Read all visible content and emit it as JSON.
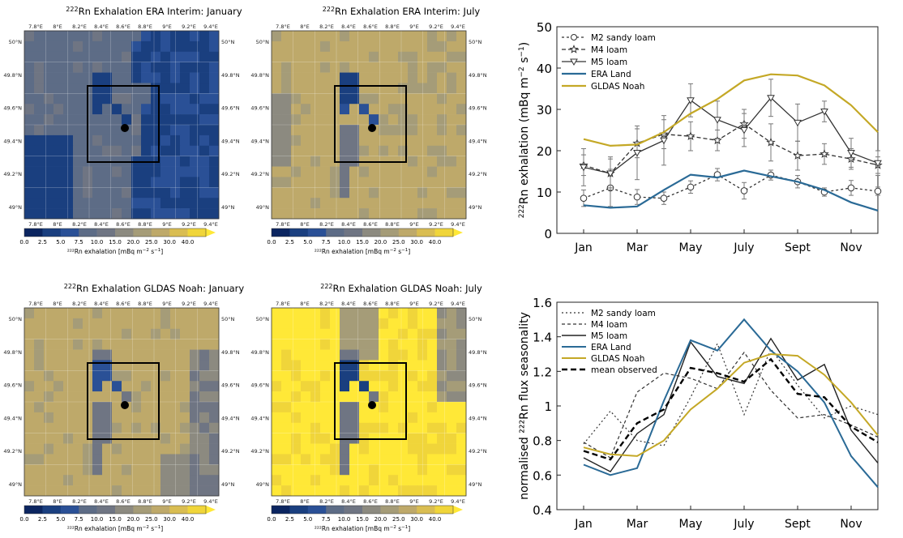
{
  "maps": {
    "ticks": {
      "x": [
        "7.8°E",
        "8°E",
        "8.2°E",
        "8.4°E",
        "8.6°E",
        "8.8°E",
        "9°E",
        "9.2°E",
        "9.4°E"
      ],
      "y": [
        "50°N",
        "49.8°N",
        "49.6°N",
        "49.4°N",
        "49.2°N",
        "49°N"
      ]
    },
    "colorbar": {
      "ticks": [
        "0.0",
        "2.5",
        "5.0",
        "7.5",
        "10.0",
        "15.0",
        "20.0",
        "25.0",
        "30.0",
        "40.0"
      ],
      "colors": [
        "#0b2560",
        "#1a3f7f",
        "#2a5096",
        "#5d6c86",
        "#6f7583",
        "#8c8a80",
        "#a59c78",
        "#bea96a",
        "#d9bd52",
        "#f0d53a",
        "#ffe837"
      ],
      "label_pre": "²²²Rn exhalation  [mBq m",
      "label_exp": "−2",
      "label_mid": " s",
      "label_exp2": "−1",
      "label_post": "]"
    },
    "panels": [
      {
        "title_iso": "222",
        "title": "Rn Exhalation ERA Interim: January",
        "scheme": "era_jan"
      },
      {
        "title_iso": "222",
        "title": "Rn Exhalation ERA Interim: July",
        "scheme": "era_jul"
      },
      {
        "title_iso": "222",
        "title": "Rn Exhalation GLDAS Noah: January",
        "scheme": "gldas_jan"
      },
      {
        "title_iso": "222",
        "title": "Rn Exhalation GLDAS Noah: July",
        "scheme": "gldas_jul"
      }
    ]
  },
  "chart_data": [
    {
      "type": "line",
      "ylabel_iso": "222",
      "ylabel_pre": "Rn exhalation (mBq m",
      "ylabel_exp1": "−2",
      "ylabel_mid": " s",
      "ylabel_exp2": "−1",
      "ylabel_post": ")",
      "ylim": [
        0,
        50
      ],
      "yticks": [
        0,
        10,
        20,
        30,
        40,
        50
      ],
      "xlim": [
        0,
        12
      ],
      "xticks": [
        {
          "x": 1,
          "label": "Jan"
        },
        {
          "x": 3,
          "label": "Mar"
        },
        {
          "x": 5,
          "label": "May"
        },
        {
          "x": 7,
          "label": "July"
        },
        {
          "x": 9,
          "label": "Sept"
        },
        {
          "x": 11,
          "label": "Nov"
        }
      ],
      "series": [
        {
          "name": "M2 sandy loam",
          "color": "#333333",
          "dash": "3,3",
          "marker": "circle",
          "x": [
            1,
            2,
            3,
            4,
            5,
            6,
            7,
            8,
            9,
            10,
            11,
            12
          ],
          "y": [
            8.5,
            11.0,
            8.8,
            8.5,
            11.2,
            14.2,
            10.3,
            14.1,
            12.5,
            10.0,
            11.0,
            10.2
          ],
          "err": [
            2.0,
            4.5,
            1.8,
            1.5,
            1.5,
            1.5,
            2.0,
            1.2,
            1.5,
            1.0,
            1.8,
            1.0
          ]
        },
        {
          "name": "M4 loam",
          "color": "#333333",
          "dash": "5,3",
          "marker": "star",
          "x": [
            1,
            2,
            3,
            4,
            5,
            6,
            7,
            8,
            9,
            10,
            11,
            12
          ],
          "y": [
            16.5,
            14.5,
            21.8,
            24.0,
            23.5,
            22.5,
            26.5,
            22.0,
            18.8,
            19.2,
            18.0,
            16.5
          ],
          "err": [
            2.5,
            3.5,
            3.5,
            3.5,
            3.5,
            2.5,
            3.5,
            4.5,
            3.5,
            2.5,
            2.5,
            2.0
          ]
        },
        {
          "name": "M5 loam",
          "color": "#333333",
          "dash": "",
          "marker": "triangle",
          "x": [
            1,
            2,
            3,
            4,
            5,
            6,
            7,
            8,
            9,
            10,
            11,
            12
          ],
          "y": [
            16.0,
            14.5,
            19.5,
            22.5,
            32.2,
            27.5,
            25.0,
            32.8,
            26.8,
            29.5,
            19.5,
            17.0
          ],
          "err": [
            4.5,
            4.0,
            6.5,
            6.0,
            4.0,
            4.5,
            4.0,
            4.5,
            4.5,
            2.5,
            3.5,
            3.0
          ]
        },
        {
          "name": "ERA Land",
          "color": "#2a6a96",
          "dash": "",
          "marker": "none",
          "width": 2.2,
          "x": [
            1,
            2,
            3,
            4,
            5,
            6,
            7,
            8,
            9,
            10,
            11,
            12
          ],
          "y": [
            6.8,
            6.2,
            6.5,
            10.5,
            14.2,
            13.5,
            15.2,
            13.8,
            12.5,
            10.5,
            7.5,
            5.5
          ]
        },
        {
          "name": "GLDAS Noah",
          "color": "#c4a826",
          "dash": "",
          "marker": "none",
          "width": 2.2,
          "x": [
            1,
            2,
            3,
            4,
            5,
            6,
            7,
            8,
            9,
            10,
            11,
            12
          ],
          "y": [
            22.8,
            21.2,
            21.5,
            24.5,
            29.0,
            32.5,
            37.0,
            38.5,
            38.2,
            35.8,
            31.0,
            24.5
          ]
        }
      ],
      "legend": "top-left"
    },
    {
      "type": "line",
      "ylabel": "normalised ²²²Rn flux seasonality",
      "ylim": [
        0.4,
        1.6
      ],
      "yticks": [
        0.4,
        0.6,
        0.8,
        1.0,
        1.2,
        1.4,
        1.6
      ],
      "xlim": [
        0,
        12
      ],
      "xticks": [
        {
          "x": 1,
          "label": "Jan"
        },
        {
          "x": 3,
          "label": "Mar"
        },
        {
          "x": 5,
          "label": "May"
        },
        {
          "x": 7,
          "label": "July"
        },
        {
          "x": 9,
          "label": "Sept"
        },
        {
          "x": 11,
          "label": "Nov"
        }
      ],
      "series": [
        {
          "name": "M2 sandy loam",
          "color": "#333333",
          "dash": "2,3",
          "width": 1.2,
          "x": [
            1,
            2,
            3,
            4,
            5,
            6,
            7,
            8,
            9,
            10,
            11,
            12
          ],
          "y": [
            0.78,
            0.97,
            0.8,
            0.77,
            1.05,
            1.36,
            0.95,
            1.33,
            1.12,
            0.93,
            1.0,
            0.95
          ]
        },
        {
          "name": "M4 loam",
          "color": "#333333",
          "dash": "4,3",
          "width": 1.2,
          "x": [
            1,
            2,
            3,
            4,
            5,
            6,
            7,
            8,
            9,
            10,
            11,
            12
          ],
          "y": [
            0.79,
            0.7,
            1.08,
            1.19,
            1.16,
            1.1,
            1.31,
            1.09,
            0.93,
            0.95,
            0.89,
            0.82
          ]
        },
        {
          "name": "M5 loam",
          "color": "#222222",
          "dash": "",
          "width": 1.4,
          "x": [
            1,
            2,
            3,
            4,
            5,
            6,
            7,
            8,
            9,
            10,
            11,
            12
          ],
          "y": [
            0.7,
            0.62,
            0.84,
            0.95,
            1.37,
            1.17,
            1.13,
            1.39,
            1.15,
            1.24,
            0.86,
            0.67
          ]
        },
        {
          "name": "ERA Land",
          "color": "#2a6a96",
          "dash": "",
          "width": 2.0,
          "x": [
            1,
            2,
            3,
            4,
            5,
            6,
            7,
            8,
            9,
            10,
            11,
            12
          ],
          "y": [
            0.66,
            0.6,
            0.64,
            1.03,
            1.38,
            1.32,
            1.5,
            1.32,
            1.2,
            1.02,
            0.71,
            0.53
          ]
        },
        {
          "name": "GLDAS Noah",
          "color": "#c4a826",
          "dash": "",
          "width": 2.0,
          "x": [
            1,
            2,
            3,
            4,
            5,
            6,
            7,
            8,
            9,
            10,
            11,
            12
          ],
          "y": [
            0.76,
            0.72,
            0.71,
            0.8,
            0.98,
            1.1,
            1.25,
            1.3,
            1.29,
            1.18,
            1.02,
            0.83
          ]
        },
        {
          "name": "mean observed",
          "color": "#000000",
          "dash": "7,4",
          "width": 2.4,
          "x": [
            1,
            2,
            3,
            4,
            5,
            6,
            7,
            8,
            9,
            10,
            11,
            12
          ],
          "y": [
            0.74,
            0.69,
            0.9,
            0.98,
            1.22,
            1.19,
            1.14,
            1.27,
            1.07,
            1.05,
            0.88,
            0.79
          ]
        }
      ],
      "legend": "top-left"
    }
  ]
}
